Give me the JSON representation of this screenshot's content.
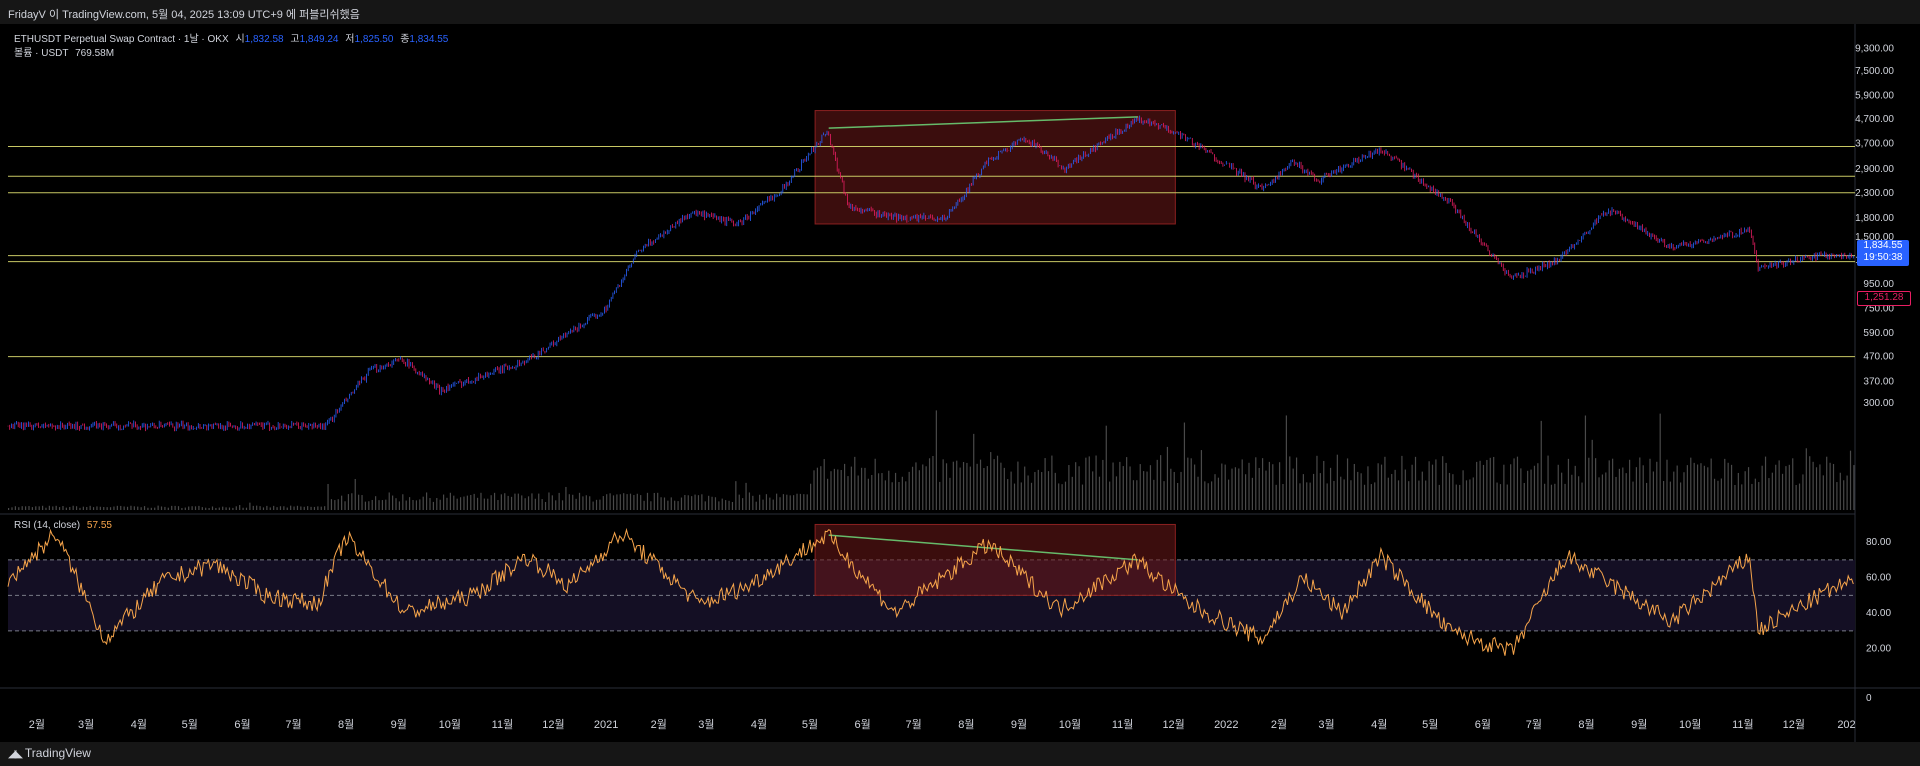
{
  "header": {
    "attribution": "FridayV 이 TradingView.com, 5월 04, 2025 13:09 UTC+9 에 퍼블리쉬했음"
  },
  "legend": {
    "symbol": "ETHUSDT Perpetual Swap Contract · 1날 · OKX",
    "open_label": "시",
    "open_value": "1,832.58",
    "high_label": "고",
    "high_value": "1,849.24",
    "low_label": "저",
    "low_value": "1,825.50",
    "close_label": "종",
    "close_value": "1,834.55",
    "volume_label": "볼륨 · USDT",
    "volume_value": "769.58M"
  },
  "rsi_legend": {
    "label": "RSI (14, close)",
    "value": "57.55"
  },
  "price_tag": {
    "price": "1,834.55",
    "countdown": "19:50:38"
  },
  "level_tag": {
    "price": "1,251.28"
  },
  "footer": {
    "brand": "TradingView"
  },
  "colors": {
    "up": "#2962ff",
    "down": "#e91e63",
    "rsi": "#f7a54b",
    "hline": "#c8c864",
    "trend": "#66bb6a",
    "box": "#6b1818"
  },
  "chart_data": [
    {
      "type": "candlestick",
      "title": "ETHUSDT Perpetual Swap Contract · 1날 · OKX",
      "scale": "log",
      "y_ticks": [
        "9,300.00",
        "7,500.00",
        "5,900.00",
        "4,700.00",
        "3,700.00",
        "2,900.00",
        "2,300.00",
        "1,800.00",
        "1,500.00",
        "1,200.00",
        "950.00",
        "750.00",
        "590.00",
        "470.00",
        "370.00",
        "300.00"
      ],
      "x_ticks": [
        "2월",
        "3월",
        "4월",
        "5월",
        "6월",
        "7월",
        "8월",
        "9월",
        "10월",
        "11월",
        "12월",
        "2021",
        "2월",
        "3월",
        "4월",
        "5월",
        "6월",
        "7월",
        "8월",
        "9월",
        "10월",
        "11월",
        "12월",
        "2022",
        "2월",
        "3월",
        "4월",
        "5월",
        "6월",
        "7월",
        "8월",
        "9월",
        "10월",
        "11월",
        "12월",
        "202"
      ],
      "approx_close_path": [
        {
          "x": "2020-01-15",
          "y": 240
        },
        {
          "x": "2020-07-20",
          "y": 240
        },
        {
          "x": "2020-08-15",
          "y": 410
        },
        {
          "x": "2020-09-03",
          "y": 460
        },
        {
          "x": "2020-09-25",
          "y": 340
        },
        {
          "x": "2020-11-15",
          "y": 450
        },
        {
          "x": "2020-12-31",
          "y": 740
        },
        {
          "x": "2021-01-20",
          "y": 1300
        },
        {
          "x": "2021-02-20",
          "y": 1900
        },
        {
          "x": "2021-03-20",
          "y": 1700
        },
        {
          "x": "2021-04-15",
          "y": 2400
        },
        {
          "x": "2021-05-11",
          "y": 4200
        },
        {
          "x": "2021-05-24",
          "y": 2000
        },
        {
          "x": "2021-06-22",
          "y": 1800
        },
        {
          "x": "2021-07-20",
          "y": 1800
        },
        {
          "x": "2021-08-15",
          "y": 3200
        },
        {
          "x": "2021-09-05",
          "y": 3900
        },
        {
          "x": "2021-09-28",
          "y": 2900
        },
        {
          "x": "2021-11-09",
          "y": 4700
        },
        {
          "x": "2021-12-04",
          "y": 4100
        },
        {
          "x": "2022-01-22",
          "y": 2400
        },
        {
          "x": "2022-02-10",
          "y": 3100
        },
        {
          "x": "2022-02-24",
          "y": 2600
        },
        {
          "x": "2022-04-02",
          "y": 3500
        },
        {
          "x": "2022-05-12",
          "y": 2100
        },
        {
          "x": "2022-06-18",
          "y": 1000
        },
        {
          "x": "2022-07-15",
          "y": 1200
        },
        {
          "x": "2022-08-14",
          "y": 1950
        },
        {
          "x": "2022-09-20",
          "y": 1350
        },
        {
          "x": "2022-11-05",
          "y": 1600
        },
        {
          "x": "2022-11-10",
          "y": 1100
        },
        {
          "x": "2022-12-15",
          "y": 1250
        },
        {
          "x": "2023-01-04",
          "y": 1250
        }
      ],
      "horizontal_levels": [
        3600,
        2700,
        2300,
        1251.28,
        1180,
        470
      ],
      "highlight_box": {
        "x": [
          "2021-05-04",
          "2021-12-02"
        ],
        "y": [
          1700,
          5100
        ]
      },
      "trend_line": {
        "x": [
          "2021-05-12",
          "2021-11-10"
        ],
        "y": [
          4300,
          4800
        ]
      }
    },
    {
      "type": "line",
      "title": "RSI (14, close)",
      "y_ticks": [
        "80.00",
        "60.00",
        "40.00",
        "20.00",
        "0"
      ],
      "bands": [
        30,
        50,
        70
      ],
      "last_value": 57.55,
      "approx_path": [
        {
          "x": "2020-01-15",
          "y": 58
        },
        {
          "x": "2020-02-12",
          "y": 85
        },
        {
          "x": "2020-03-12",
          "y": 25
        },
        {
          "x": "2020-04-15",
          "y": 58
        },
        {
          "x": "2020-05-15",
          "y": 68
        },
        {
          "x": "2020-06-15",
          "y": 50
        },
        {
          "x": "2020-07-15",
          "y": 45
        },
        {
          "x": "2020-08-01",
          "y": 83
        },
        {
          "x": "2020-09-05",
          "y": 40
        },
        {
          "x": "2020-10-15",
          "y": 50
        },
        {
          "x": "2020-11-15",
          "y": 72
        },
        {
          "x": "2020-12-10",
          "y": 55
        },
        {
          "x": "2021-01-10",
          "y": 85
        },
        {
          "x": "2021-02-25",
          "y": 45
        },
        {
          "x": "2021-03-25",
          "y": 55
        },
        {
          "x": "2021-05-11",
          "y": 84
        },
        {
          "x": "2021-06-20",
          "y": 40
        },
        {
          "x": "2021-08-14",
          "y": 79
        },
        {
          "x": "2021-09-25",
          "y": 42
        },
        {
          "x": "2021-11-09",
          "y": 70
        },
        {
          "x": "2021-12-10",
          "y": 45
        },
        {
          "x": "2022-01-22",
          "y": 25
        },
        {
          "x": "2022-02-15",
          "y": 60
        },
        {
          "x": "2022-03-10",
          "y": 40
        },
        {
          "x": "2022-04-02",
          "y": 72
        },
        {
          "x": "2022-05-12",
          "y": 30
        },
        {
          "x": "2022-06-18",
          "y": 18
        },
        {
          "x": "2022-07-20",
          "y": 72
        },
        {
          "x": "2022-09-20",
          "y": 35
        },
        {
          "x": "2022-11-05",
          "y": 72
        },
        {
          "x": "2022-11-10",
          "y": 30
        },
        {
          "x": "2022-12-20",
          "y": 52
        },
        {
          "x": "2023-01-04",
          "y": 57.55
        }
      ],
      "highlight_box": {
        "x": [
          "2021-05-04",
          "2021-12-02"
        ],
        "y": [
          50,
          90
        ]
      },
      "trend_line": {
        "x": [
          "2021-05-12",
          "2021-11-10"
        ],
        "y": [
          84,
          70
        ]
      }
    }
  ]
}
